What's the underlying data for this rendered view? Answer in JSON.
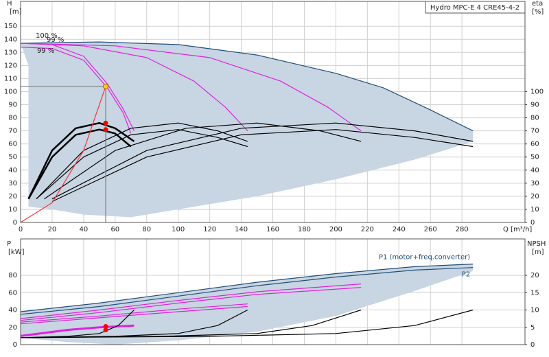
{
  "chart_data": [
    {
      "type": "line",
      "title": "Hydro MPC-E 4 CRE45-4-2",
      "y_label": "H",
      "y_unit": "[m]",
      "y2_label": "eta",
      "y2_unit": "[%]",
      "x_label": "Q [m³/h]",
      "annotations": [
        "100 %",
        "99 %",
        "99 %"
      ],
      "xlim": [
        0,
        320
      ],
      "ylim": [
        0,
        169
      ],
      "y2lim": [
        0,
        169
      ],
      "grid": true,
      "xticks": [
        0,
        20,
        40,
        60,
        80,
        100,
        120,
        140,
        160,
        180,
        200,
        220,
        240,
        260,
        280
      ],
      "yticks": [
        0,
        10,
        20,
        30,
        40,
        50,
        60,
        70,
        80,
        90,
        100,
        110,
        120,
        130,
        140,
        150
      ],
      "y2ticks": [
        0,
        10,
        20,
        30,
        40,
        50,
        60,
        70,
        80,
        90,
        100
      ],
      "series": [
        {
          "type": "area",
          "color": "#c8d5e2",
          "x": [
            0,
            50,
            100,
            150,
            200,
            230,
            260,
            287,
            287,
            250,
            200,
            150,
            100,
            70,
            40,
            20,
            5,
            5
          ],
          "values": [
            137,
            138,
            136,
            128,
            114,
            103,
            86,
            70,
            62,
            48,
            33,
            20,
            10,
            4,
            6,
            10,
            12,
            120
          ]
        },
        {
          "color": "#1f4e79",
          "x": [
            0,
            50,
            100,
            150,
            200,
            230,
            260,
            287
          ],
          "values": [
            137,
            138,
            136,
            128,
            114,
            103,
            86,
            70
          ]
        },
        {
          "color": "#e020e0",
          "x": [
            0,
            20,
            40,
            55,
            65,
            72
          ],
          "values": [
            137,
            136,
            127,
            106,
            87,
            70
          ]
        },
        {
          "color": "#e020e0",
          "x": [
            0,
            20,
            40,
            55,
            65,
            70
          ],
          "values": [
            134,
            133,
            124,
            103,
            84,
            68
          ]
        },
        {
          "color": "#e020e0",
          "x": [
            0,
            40,
            80,
            110,
            130,
            144
          ],
          "values": [
            137,
            135,
            126,
            108,
            88,
            70
          ]
        },
        {
          "color": "#e020e0",
          "x": [
            0,
            60,
            120,
            165,
            195,
            216
          ],
          "values": [
            137,
            135,
            126,
            108,
            88,
            70
          ]
        },
        {
          "color": "#000000",
          "axis": "y2",
          "width": 2.5,
          "x": [
            5,
            20,
            35,
            50,
            60,
            72
          ],
          "values": [
            18,
            55,
            72,
            76,
            72,
            62
          ]
        },
        {
          "color": "#000000",
          "axis": "y2",
          "width": 2.5,
          "x": [
            5,
            20,
            35,
            50,
            60,
            70
          ],
          "values": [
            18,
            50,
            67,
            71,
            68,
            58
          ]
        },
        {
          "color": "#000000",
          "axis": "y2",
          "x": [
            10,
            40,
            70,
            100,
            125,
            144
          ],
          "values": [
            18,
            55,
            72,
            76,
            70,
            62
          ]
        },
        {
          "color": "#000000",
          "axis": "y2",
          "x": [
            10,
            40,
            70,
            100,
            125,
            144
          ],
          "values": [
            18,
            50,
            67,
            71,
            65,
            58
          ]
        },
        {
          "color": "#000000",
          "axis": "y2",
          "x": [
            15,
            60,
            105,
            150,
            190,
            216
          ],
          "values": [
            18,
            55,
            72,
            76,
            70,
            62
          ]
        },
        {
          "color": "#000000",
          "axis": "y2",
          "x": [
            20,
            80,
            140,
            200,
            250,
            287
          ],
          "values": [
            18,
            55,
            72,
            76,
            70,
            62
          ]
        },
        {
          "color": "#000000",
          "axis": "y2",
          "x": [
            20,
            80,
            140,
            200,
            250,
            287
          ],
          "values": [
            16,
            50,
            67,
            71,
            65,
            58
          ]
        },
        {
          "color": "#ff3030",
          "x": [
            0,
            20,
            40,
            54
          ],
          "values": [
            0,
            15,
            55,
            104
          ]
        },
        {
          "color": "#808080",
          "x": [
            0,
            54,
            54
          ],
          "values": [
            104,
            104,
            0
          ]
        },
        {
          "type": "scatter",
          "color": "#ff0000",
          "axis": "y2",
          "x": [
            54,
            54
          ],
          "values": [
            76,
            71
          ]
        },
        {
          "type": "scatter",
          "color": "#ffd000",
          "x": [
            54
          ],
          "values": [
            104
          ]
        }
      ]
    },
    {
      "type": "line",
      "y_label": "P",
      "y_unit": "[kW]",
      "y2_label": "NPSH",
      "y2_unit": "[m]",
      "xlim": [
        0,
        320
      ],
      "ylim": [
        0,
        122
      ],
      "y2lim": [
        0,
        30.5
      ],
      "grid": true,
      "yticks": [
        0,
        20,
        40,
        60,
        80
      ],
      "y2ticks": [
        0,
        5,
        10,
        15,
        20
      ],
      "series": [
        {
          "type": "area",
          "color": "#c8d5e2",
          "x": [
            0,
            50,
            100,
            150,
            200,
            250,
            287,
            287,
            250,
            200,
            150,
            100,
            60,
            30,
            0
          ],
          "values": [
            38,
            48,
            60,
            72,
            82,
            90,
            93,
            85,
            62,
            33,
            15,
            5,
            0,
            3,
            8
          ]
        },
        {
          "name": "P1 (motor+freq.converter)",
          "color": "#1f4e79",
          "x": [
            0,
            50,
            100,
            150,
            200,
            250,
            287
          ],
          "values": [
            38,
            48,
            60,
            72,
            82,
            90,
            93
          ]
        },
        {
          "name": "P2",
          "color": "#1f4e79",
          "x": [
            0,
            50,
            100,
            150,
            200,
            250,
            287
          ],
          "values": [
            35,
            44,
            56,
            68,
            78,
            86,
            89
          ]
        },
        {
          "color": "#e020e0",
          "width": 3,
          "x": [
            0,
            30,
            50,
            72
          ],
          "values": [
            10,
            17,
            20,
            22
          ]
        },
        {
          "color": "#e020e0",
          "x": [
            0,
            50,
            100,
            144
          ],
          "values": [
            26,
            33,
            41,
            47
          ]
        },
        {
          "color": "#e020e0",
          "x": [
            0,
            50,
            100,
            144
          ],
          "values": [
            24,
            31,
            38,
            44
          ]
        },
        {
          "color": "#e020e0",
          "x": [
            0,
            50,
            100,
            150,
            216
          ],
          "values": [
            30,
            40,
            51,
            61,
            70
          ]
        },
        {
          "color": "#e020e0",
          "x": [
            0,
            50,
            100,
            150,
            216
          ],
          "values": [
            28,
            37,
            48,
            58,
            66
          ]
        },
        {
          "color": "#000000",
          "axis": "y2",
          "x": [
            0,
            30,
            50,
            62,
            72
          ],
          "values": [
            2,
            2.4,
            3.2,
            5.5,
            10
          ]
        },
        {
          "color": "#000000",
          "axis": "y2",
          "x": [
            0,
            60,
            100,
            125,
            144
          ],
          "values": [
            2,
            2.4,
            3.2,
            5.5,
            10
          ]
        },
        {
          "color": "#000000",
          "axis": "y2",
          "x": [
            0,
            90,
            150,
            185,
            216
          ],
          "values": [
            2,
            2.4,
            3.2,
            5.5,
            10
          ]
        },
        {
          "color": "#000000",
          "axis": "y2",
          "x": [
            0,
            120,
            200,
            250,
            287
          ],
          "values": [
            2,
            2.4,
            3.2,
            5.5,
            10
          ]
        },
        {
          "type": "scatter",
          "color": "#ff0000",
          "x": [
            54,
            54
          ],
          "values": [
            17,
            21
          ]
        }
      ]
    }
  ]
}
